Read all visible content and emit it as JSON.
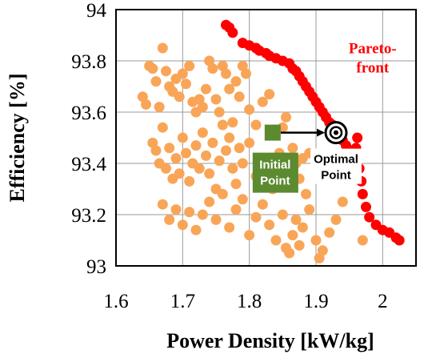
{
  "chart_data": {
    "type": "scatter",
    "xlabel": "Power Density [kW/kg]",
    "ylabel": "Efficiency [%]",
    "xlim": [
      1.6,
      2.05
    ],
    "ylim": [
      93.0,
      94.0
    ],
    "xticks": [
      "1.6",
      "1.7",
      "1.8",
      "1.9",
      "2"
    ],
    "yticks": [
      "93",
      "93.2",
      "93.4",
      "93.6",
      "93.8",
      "94"
    ],
    "grid": true,
    "colors": {
      "population": "#f9a557",
      "pareto": "#ff0000",
      "initial": "#5b8a2f",
      "optimal": "#000000"
    },
    "series": [
      {
        "marker": "circle",
        "color": "#f9a557",
        "points": [
          [
            1.64,
            93.66
          ],
          [
            1.645,
            93.63
          ],
          [
            1.65,
            93.78
          ],
          [
            1.655,
            93.77
          ],
          [
            1.66,
            93.72
          ],
          [
            1.665,
            93.62
          ],
          [
            1.67,
            93.85
          ],
          [
            1.675,
            93.76
          ],
          [
            1.68,
            93.7
          ],
          [
            1.685,
            93.68
          ],
          [
            1.69,
            93.73
          ],
          [
            1.695,
            93.66
          ],
          [
            1.7,
            93.75
          ],
          [
            1.705,
            93.71
          ],
          [
            1.71,
            93.78
          ],
          [
            1.715,
            93.64
          ],
          [
            1.72,
            93.6
          ],
          [
            1.725,
            93.65
          ],
          [
            1.73,
            93.62
          ],
          [
            1.735,
            93.69
          ],
          [
            1.74,
            93.8
          ],
          [
            1.745,
            93.77
          ],
          [
            1.75,
            93.65
          ],
          [
            1.755,
            93.6
          ],
          [
            1.76,
            93.78
          ],
          [
            1.765,
            93.75
          ],
          [
            1.77,
            93.69
          ],
          [
            1.775,
            93.56
          ],
          [
            1.78,
            93.72
          ],
          [
            1.785,
            93.66
          ],
          [
            1.79,
            93.78
          ],
          [
            1.795,
            93.75
          ],
          [
            1.8,
            93.61
          ],
          [
            1.81,
            93.55
          ],
          [
            1.82,
            93.64
          ],
          [
            1.83,
            93.67
          ],
          [
            1.655,
            93.48
          ],
          [
            1.66,
            93.45
          ],
          [
            1.665,
            93.4
          ],
          [
            1.67,
            93.54
          ],
          [
            1.675,
            93.38
          ],
          [
            1.68,
            93.46
          ],
          [
            1.685,
            93.34
          ],
          [
            1.69,
            93.42
          ],
          [
            1.695,
            93.36
          ],
          [
            1.7,
            93.5
          ],
          [
            1.705,
            93.44
          ],
          [
            1.71,
            93.33
          ],
          [
            1.715,
            93.4
          ],
          [
            1.72,
            93.47
          ],
          [
            1.725,
            93.38
          ],
          [
            1.73,
            93.52
          ],
          [
            1.735,
            93.43
          ],
          [
            1.74,
            93.36
          ],
          [
            1.745,
            93.48
          ],
          [
            1.75,
            93.3
          ],
          [
            1.755,
            93.41
          ],
          [
            1.76,
            93.55
          ],
          [
            1.765,
            93.45
          ],
          [
            1.77,
            93.5
          ],
          [
            1.775,
            93.38
          ],
          [
            1.78,
            93.32
          ],
          [
            1.785,
            93.46
          ],
          [
            1.79,
            93.4
          ],
          [
            1.8,
            93.48
          ],
          [
            1.81,
            93.35
          ],
          [
            1.82,
            93.42
          ],
          [
            1.835,
            93.3
          ],
          [
            1.845,
            93.44
          ],
          [
            1.85,
            93.54
          ],
          [
            1.855,
            93.58
          ],
          [
            1.86,
            93.38
          ],
          [
            1.865,
            93.46
          ],
          [
            1.87,
            93.4
          ],
          [
            1.875,
            93.34
          ],
          [
            1.88,
            93.42
          ],
          [
            1.885,
            93.28
          ],
          [
            1.89,
            93.44
          ],
          [
            1.67,
            93.24
          ],
          [
            1.68,
            93.18
          ],
          [
            1.69,
            93.22
          ],
          [
            1.7,
            93.16
          ],
          [
            1.71,
            93.21
          ],
          [
            1.72,
            93.14
          ],
          [
            1.73,
            93.2
          ],
          [
            1.74,
            93.25
          ],
          [
            1.75,
            93.18
          ],
          [
            1.76,
            93.28
          ],
          [
            1.77,
            93.15
          ],
          [
            1.78,
            93.22
          ],
          [
            1.79,
            93.26
          ],
          [
            1.8,
            93.12
          ],
          [
            1.81,
            93.19
          ],
          [
            1.82,
            93.24
          ],
          [
            1.83,
            93.16
          ],
          [
            1.84,
            93.1
          ],
          [
            1.85,
            93.2
          ],
          [
            1.855,
            93.07
          ],
          [
            1.86,
            93.05
          ],
          [
            1.865,
            93.12
          ],
          [
            1.87,
            93.18
          ],
          [
            1.875,
            93.08
          ],
          [
            1.88,
            93.15
          ],
          [
            1.89,
            93.22
          ],
          [
            1.9,
            93.1
          ],
          [
            1.91,
            93.06
          ],
          [
            1.92,
            93.13
          ],
          [
            1.93,
            93.18
          ],
          [
            1.94,
            93.25
          ],
          [
            1.97,
            93.1
          ],
          [
            1.905,
            93.03
          ]
        ]
      },
      {
        "name": "Pareto-front",
        "marker": "circle",
        "color": "#ff0000",
        "points": [
          [
            1.765,
            93.94
          ],
          [
            1.77,
            93.93
          ],
          [
            1.775,
            93.91
          ],
          [
            1.79,
            93.87
          ],
          [
            1.8,
            93.86
          ],
          [
            1.81,
            93.85
          ],
          [
            1.815,
            93.84
          ],
          [
            1.825,
            93.83
          ],
          [
            1.83,
            93.82
          ],
          [
            1.84,
            93.81
          ],
          [
            1.85,
            93.8
          ],
          [
            1.86,
            93.79
          ],
          [
            1.865,
            93.77
          ],
          [
            1.87,
            93.76
          ],
          [
            1.875,
            93.74
          ],
          [
            1.88,
            93.72
          ],
          [
            1.885,
            93.7
          ],
          [
            1.89,
            93.68
          ],
          [
            1.895,
            93.66
          ],
          [
            1.9,
            93.64
          ],
          [
            1.905,
            93.62
          ],
          [
            1.91,
            93.6
          ],
          [
            1.915,
            93.58
          ],
          [
            1.92,
            93.56
          ],
          [
            1.925,
            93.55
          ],
          [
            1.93,
            93.53
          ],
          [
            1.935,
            93.51
          ],
          [
            1.94,
            93.49
          ],
          [
            1.945,
            93.47
          ],
          [
            1.95,
            93.45
          ],
          [
            1.955,
            93.42
          ],
          [
            1.96,
            93.46
          ],
          [
            1.962,
            93.5
          ],
          [
            1.965,
            93.38
          ],
          [
            1.968,
            93.33
          ],
          [
            1.97,
            93.28
          ],
          [
            1.975,
            93.23
          ],
          [
            1.98,
            93.19
          ],
          [
            1.99,
            93.16
          ],
          [
            2.0,
            93.14
          ],
          [
            2.01,
            93.13
          ],
          [
            2.02,
            93.11
          ],
          [
            2.025,
            93.1
          ]
        ]
      }
    ],
    "initial_point": {
      "x": 1.835,
      "y": 93.52,
      "label": [
        "Initial",
        "Point"
      ]
    },
    "optimal_point": {
      "x": 1.93,
      "y": 93.52,
      "label": [
        "Optimal",
        "Point"
      ]
    },
    "pareto_label": [
      "Pareto-",
      "front"
    ]
  }
}
